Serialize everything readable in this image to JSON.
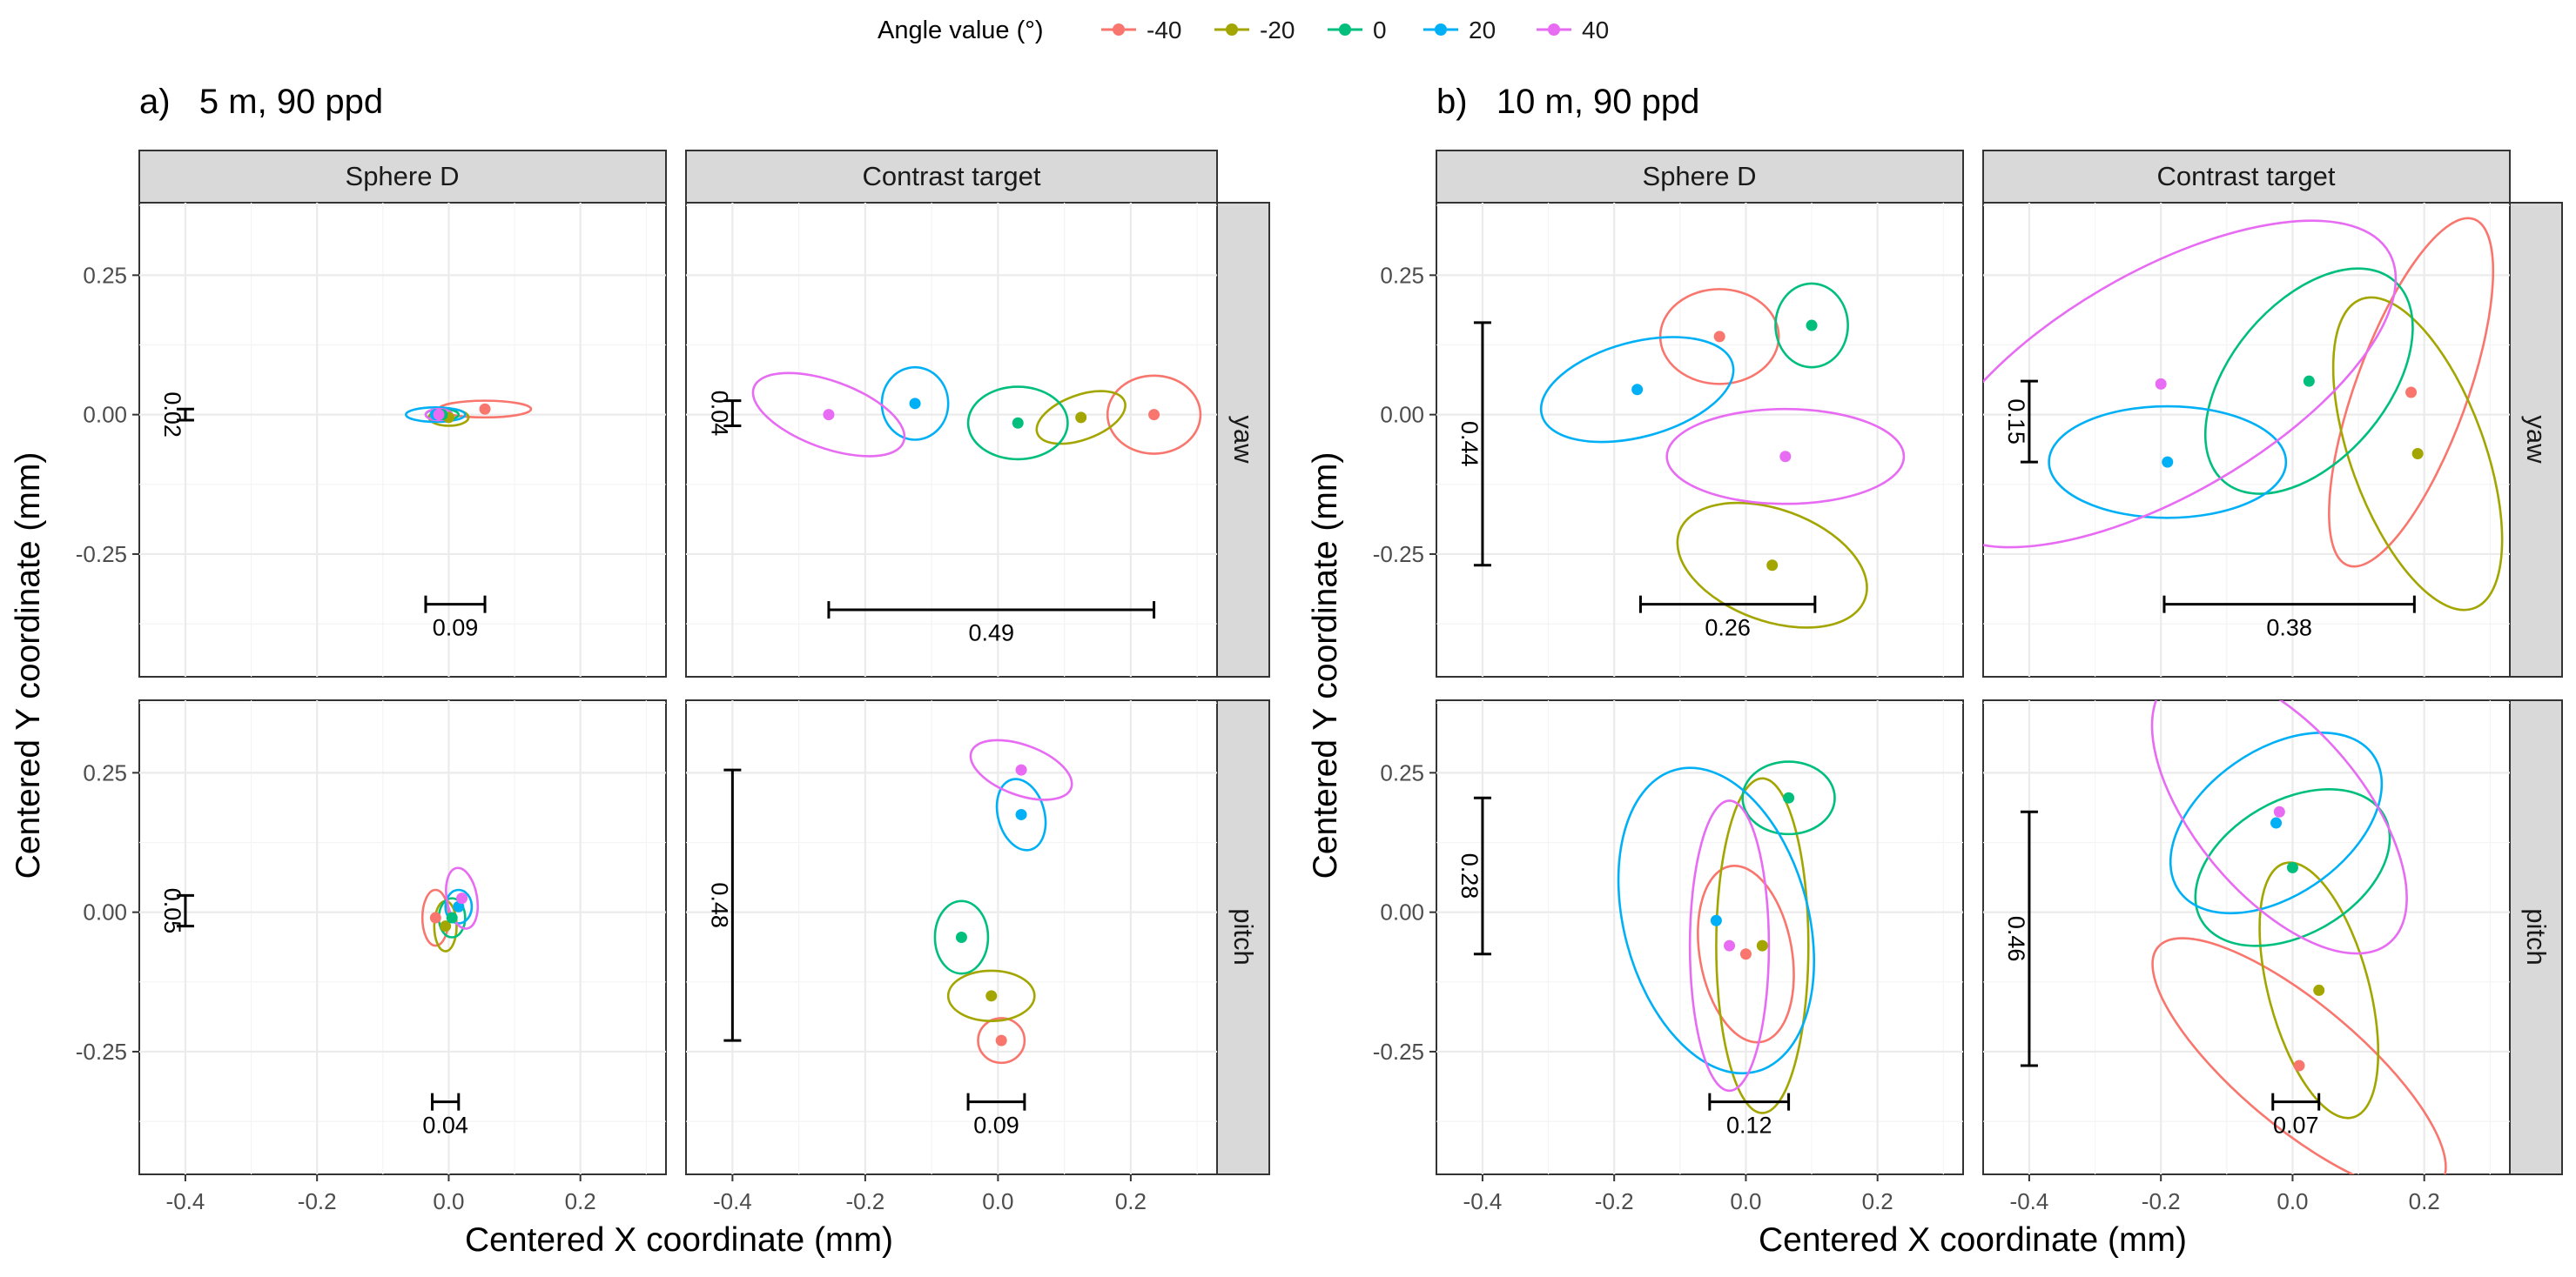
{
  "chart_data": {
    "type": "scatter",
    "description_kind": "faceted scatter of mean positions with confidence ellipses and scale bars",
    "legend": {
      "title": "Angle value (°)",
      "placement": "top-center",
      "entries": [
        {
          "label": "-40",
          "color": "#F8766D"
        },
        {
          "label": "-20",
          "color": "#A3A500"
        },
        {
          "label": "0",
          "color": "#00BF7D"
        },
        {
          "label": "20",
          "color": "#00B0F6"
        },
        {
          "label": "40",
          "color": "#E76BF3"
        }
      ]
    },
    "xlabel": "Centered X coordinate (mm)",
    "ylabel": "Centered Y coordinate (mm)",
    "xlim": [
      -0.47,
      0.33
    ],
    "ylim": [
      -0.47,
      0.38
    ],
    "xticks": [
      -0.4,
      -0.2,
      0,
      0.2
    ],
    "xtick_labels": [
      "-0.4",
      "-0.2",
      "0.0",
      "0.2"
    ],
    "yticks": [
      0.25,
      0,
      -0.25
    ],
    "ytick_labels": [
      "0.25",
      "0.00",
      "-0.25"
    ],
    "groups": [
      {
        "title": "a)   5 m, 90 ppd",
        "columns": [
          "Sphere D",
          "Contrast target"
        ],
        "rows": [
          "yaw",
          "pitch"
        ],
        "panels": [
          {
            "col": 0,
            "row": 0,
            "points": [
              {
                "angle": "-40",
                "x": 0.055,
                "y": 0.01,
                "ell": {
                  "rx": 0.07,
                  "ry": 0.015,
                  "rot": 0
                }
              },
              {
                "angle": "-20",
                "x": 0.0,
                "y": -0.005,
                "ell": {
                  "rx": 0.03,
                  "ry": 0.015,
                  "rot": 0
                }
              },
              {
                "angle": "0",
                "x": -0.01,
                "y": 0.0,
                "ell": {
                  "rx": 0.025,
                  "ry": 0.01,
                  "rot": 0
                }
              },
              {
                "angle": "20",
                "x": -0.02,
                "y": 0.0,
                "ell": {
                  "rx": 0.045,
                  "ry": 0.013,
                  "rot": 0
                }
              },
              {
                "angle": "40",
                "x": -0.015,
                "y": 0.0,
                "ell": {
                  "rx": 0.02,
                  "ry": 0.01,
                  "rot": 0
                }
              }
            ],
            "hbar": {
              "label": "0.09",
              "x0": -0.035,
              "x1": 0.055,
              "y": -0.34,
              "label_y": -0.38
            },
            "vbar": {
              "label": "0.02",
              "x": -0.4,
              "y0": -0.01,
              "y1": 0.01
            }
          },
          {
            "col": 1,
            "row": 0,
            "points": [
              {
                "angle": "-40",
                "x": 0.235,
                "y": 0.0,
                "ell": {
                  "rx": 0.07,
                  "ry": 0.07,
                  "rot": 0
                }
              },
              {
                "angle": "-20",
                "x": 0.125,
                "y": -0.005,
                "ell": {
                  "rx": 0.07,
                  "ry": 0.04,
                  "rot": 20
                }
              },
              {
                "angle": "0",
                "x": 0.03,
                "y": -0.015,
                "ell": {
                  "rx": 0.075,
                  "ry": 0.065,
                  "rot": 0
                }
              },
              {
                "angle": "20",
                "x": -0.125,
                "y": 0.02,
                "ell": {
                  "rx": 0.05,
                  "ry": 0.065,
                  "rot": 0
                }
              },
              {
                "angle": "40",
                "x": -0.255,
                "y": 0.0,
                "ell": {
                  "rx": 0.12,
                  "ry": 0.06,
                  "rot": -20
                }
              }
            ],
            "hbar": {
              "label": "0.49",
              "x0": -0.255,
              "x1": 0.235,
              "y": -0.35,
              "label_y": -0.39
            },
            "vbar": {
              "label": "0.04",
              "x": -0.4,
              "y0": -0.02,
              "y1": 0.025
            }
          },
          {
            "col": 0,
            "row": 1,
            "points": [
              {
                "angle": "-40",
                "x": -0.02,
                "y": -0.01,
                "ell": {
                  "rx": 0.02,
                  "ry": 0.05,
                  "rot": 0
                }
              },
              {
                "angle": "-20",
                "x": -0.005,
                "y": -0.025,
                "ell": {
                  "rx": 0.017,
                  "ry": 0.045,
                  "rot": 0
                }
              },
              {
                "angle": "0",
                "x": 0.005,
                "y": -0.01,
                "ell": {
                  "rx": 0.02,
                  "ry": 0.035,
                  "rot": 0
                }
              },
              {
                "angle": "20",
                "x": 0.015,
                "y": 0.01,
                "ell": {
                  "rx": 0.02,
                  "ry": 0.03,
                  "rot": 0
                }
              },
              {
                "angle": "40",
                "x": 0.02,
                "y": 0.025,
                "ell": {
                  "rx": 0.023,
                  "ry": 0.055,
                  "rot": 10
                }
              }
            ],
            "hbar": {
              "label": "0.04",
              "x0": -0.025,
              "x1": 0.015,
              "y": -0.34,
              "label_y": -0.38
            },
            "vbar": {
              "label": "0.05",
              "x": -0.4,
              "y0": -0.025,
              "y1": 0.03
            }
          },
          {
            "col": 1,
            "row": 1,
            "points": [
              {
                "angle": "-40",
                "x": 0.005,
                "y": -0.23,
                "ell": {
                  "rx": 0.035,
                  "ry": 0.04,
                  "rot": 0
                }
              },
              {
                "angle": "-20",
                "x": -0.01,
                "y": -0.15,
                "ell": {
                  "rx": 0.065,
                  "ry": 0.045,
                  "rot": 0
                }
              },
              {
                "angle": "0",
                "x": -0.055,
                "y": -0.045,
                "ell": {
                  "rx": 0.04,
                  "ry": 0.065,
                  "rot": 0
                }
              },
              {
                "angle": "20",
                "x": 0.035,
                "y": 0.175,
                "ell": {
                  "rx": 0.035,
                  "ry": 0.065,
                  "rot": 15
                }
              },
              {
                "angle": "40",
                "x": 0.035,
                "y": 0.255,
                "ell": {
                  "rx": 0.08,
                  "ry": 0.045,
                  "rot": -20
                }
              }
            ],
            "hbar": {
              "label": "0.09",
              "x0": -0.045,
              "x1": 0.04,
              "y": -0.34,
              "label_y": -0.38
            },
            "vbar": {
              "label": "0.48",
              "x": -0.4,
              "y0": -0.23,
              "y1": 0.255
            }
          }
        ]
      },
      {
        "title": "b)   10 m, 90 ppd",
        "columns": [
          "Sphere D",
          "Contrast target"
        ],
        "rows": [
          "yaw",
          "pitch"
        ],
        "panels": [
          {
            "col": 0,
            "row": 0,
            "points": [
              {
                "angle": "-40",
                "x": -0.04,
                "y": 0.14,
                "ell": {
                  "rx": 0.09,
                  "ry": 0.085,
                  "rot": 0
                }
              },
              {
                "angle": "-20",
                "x": 0.04,
                "y": -0.27,
                "ell": {
                  "rx": 0.15,
                  "ry": 0.1,
                  "rot": -20
                }
              },
              {
                "angle": "0",
                "x": 0.1,
                "y": 0.16,
                "ell": {
                  "rx": 0.055,
                  "ry": 0.075,
                  "rot": 0
                }
              },
              {
                "angle": "20",
                "x": -0.165,
                "y": 0.045,
                "ell": {
                  "rx": 0.15,
                  "ry": 0.085,
                  "rot": 15
                }
              },
              {
                "angle": "40",
                "x": 0.06,
                "y": -0.075,
                "ell": {
                  "rx": 0.18,
                  "ry": 0.085,
                  "rot": 0
                }
              }
            ],
            "hbar": {
              "label": "0.26",
              "x0": -0.16,
              "x1": 0.105,
              "y": -0.34,
              "label_y": -0.38
            },
            "vbar": {
              "label": "0.44",
              "x": -0.4,
              "y0": -0.27,
              "y1": 0.165
            }
          },
          {
            "col": 1,
            "row": 0,
            "points": [
              {
                "angle": "-40",
                "x": 0.18,
                "y": 0.04,
                "ell": {
                  "rx": 0.28,
                  "ry": 0.1,
                  "rot": 70
                }
              },
              {
                "angle": "-20",
                "x": 0.19,
                "y": -0.07,
                "ell": {
                  "rx": 0.25,
                  "ry": 0.12,
                  "rot": -70
                }
              },
              {
                "angle": "0",
                "x": 0.025,
                "y": 0.06,
                "ell": {
                  "rx": 0.2,
                  "ry": 0.14,
                  "rot": 50
                }
              },
              {
                "angle": "20",
                "x": -0.19,
                "y": -0.085,
                "ell": {
                  "rx": 0.18,
                  "ry": 0.1,
                  "rot": 0
                }
              },
              {
                "angle": "40",
                "x": -0.2,
                "y": 0.055,
                "ell": {
                  "rx": 0.4,
                  "ry": 0.2,
                  "rot": 30
                }
              }
            ],
            "hbar": {
              "label": "0.38",
              "x0": -0.195,
              "x1": 0.185,
              "y": -0.34,
              "label_y": -0.38
            },
            "vbar": {
              "label": "0.15",
              "x": -0.4,
              "y0": -0.085,
              "y1": 0.06
            }
          },
          {
            "col": 0,
            "row": 1,
            "points": [
              {
                "angle": "-40",
                "x": 0.0,
                "y": -0.075,
                "ell": {
                  "rx": 0.07,
                  "ry": 0.16,
                  "rot": 10
                }
              },
              {
                "angle": "-20",
                "x": 0.025,
                "y": -0.06,
                "ell": {
                  "rx": 0.07,
                  "ry": 0.3,
                  "rot": 0
                }
              },
              {
                "angle": "0",
                "x": 0.065,
                "y": 0.205,
                "ell": {
                  "rx": 0.07,
                  "ry": 0.065,
                  "rot": 0
                }
              },
              {
                "angle": "20",
                "x": -0.045,
                "y": -0.015,
                "ell": {
                  "rx": 0.14,
                  "ry": 0.28,
                  "rot": 15
                }
              },
              {
                "angle": "40",
                "x": -0.025,
                "y": -0.06,
                "ell": {
                  "rx": 0.06,
                  "ry": 0.26,
                  "rot": 0
                }
              }
            ],
            "hbar": {
              "label": "0.12",
              "x0": -0.055,
              "x1": 0.065,
              "y": -0.34,
              "label_y": -0.38
            },
            "vbar": {
              "label": "0.28",
              "x": -0.4,
              "y0": -0.075,
              "y1": 0.205
            }
          },
          {
            "col": 1,
            "row": 1,
            "points": [
              {
                "angle": "-40",
                "x": 0.01,
                "y": -0.275,
                "ell": {
                  "rx": 0.28,
                  "ry": 0.11,
                  "rot": -40
                }
              },
              {
                "angle": "-20",
                "x": 0.04,
                "y": -0.14,
                "ell": {
                  "rx": 0.2,
                  "ry": 0.09,
                  "rot": -75
                }
              },
              {
                "angle": "0",
                "x": 0.0,
                "y": 0.08,
                "ell": {
                  "rx": 0.16,
                  "ry": 0.12,
                  "rot": 30
                }
              },
              {
                "angle": "20",
                "x": -0.025,
                "y": 0.16,
                "ell": {
                  "rx": 0.18,
                  "ry": 0.13,
                  "rot": 35
                }
              },
              {
                "angle": "40",
                "x": -0.02,
                "y": 0.18,
                "ell": {
                  "rx": 0.26,
                  "ry": 0.15,
                  "rot": -50
                }
              }
            ],
            "hbar": {
              "label": "0.07",
              "x0": -0.03,
              "x1": 0.04,
              "y": -0.34,
              "label_y": -0.38
            },
            "vbar": {
              "label": "0.46",
              "x": -0.4,
              "y0": -0.275,
              "y1": 0.18
            }
          }
        ]
      }
    ]
  }
}
